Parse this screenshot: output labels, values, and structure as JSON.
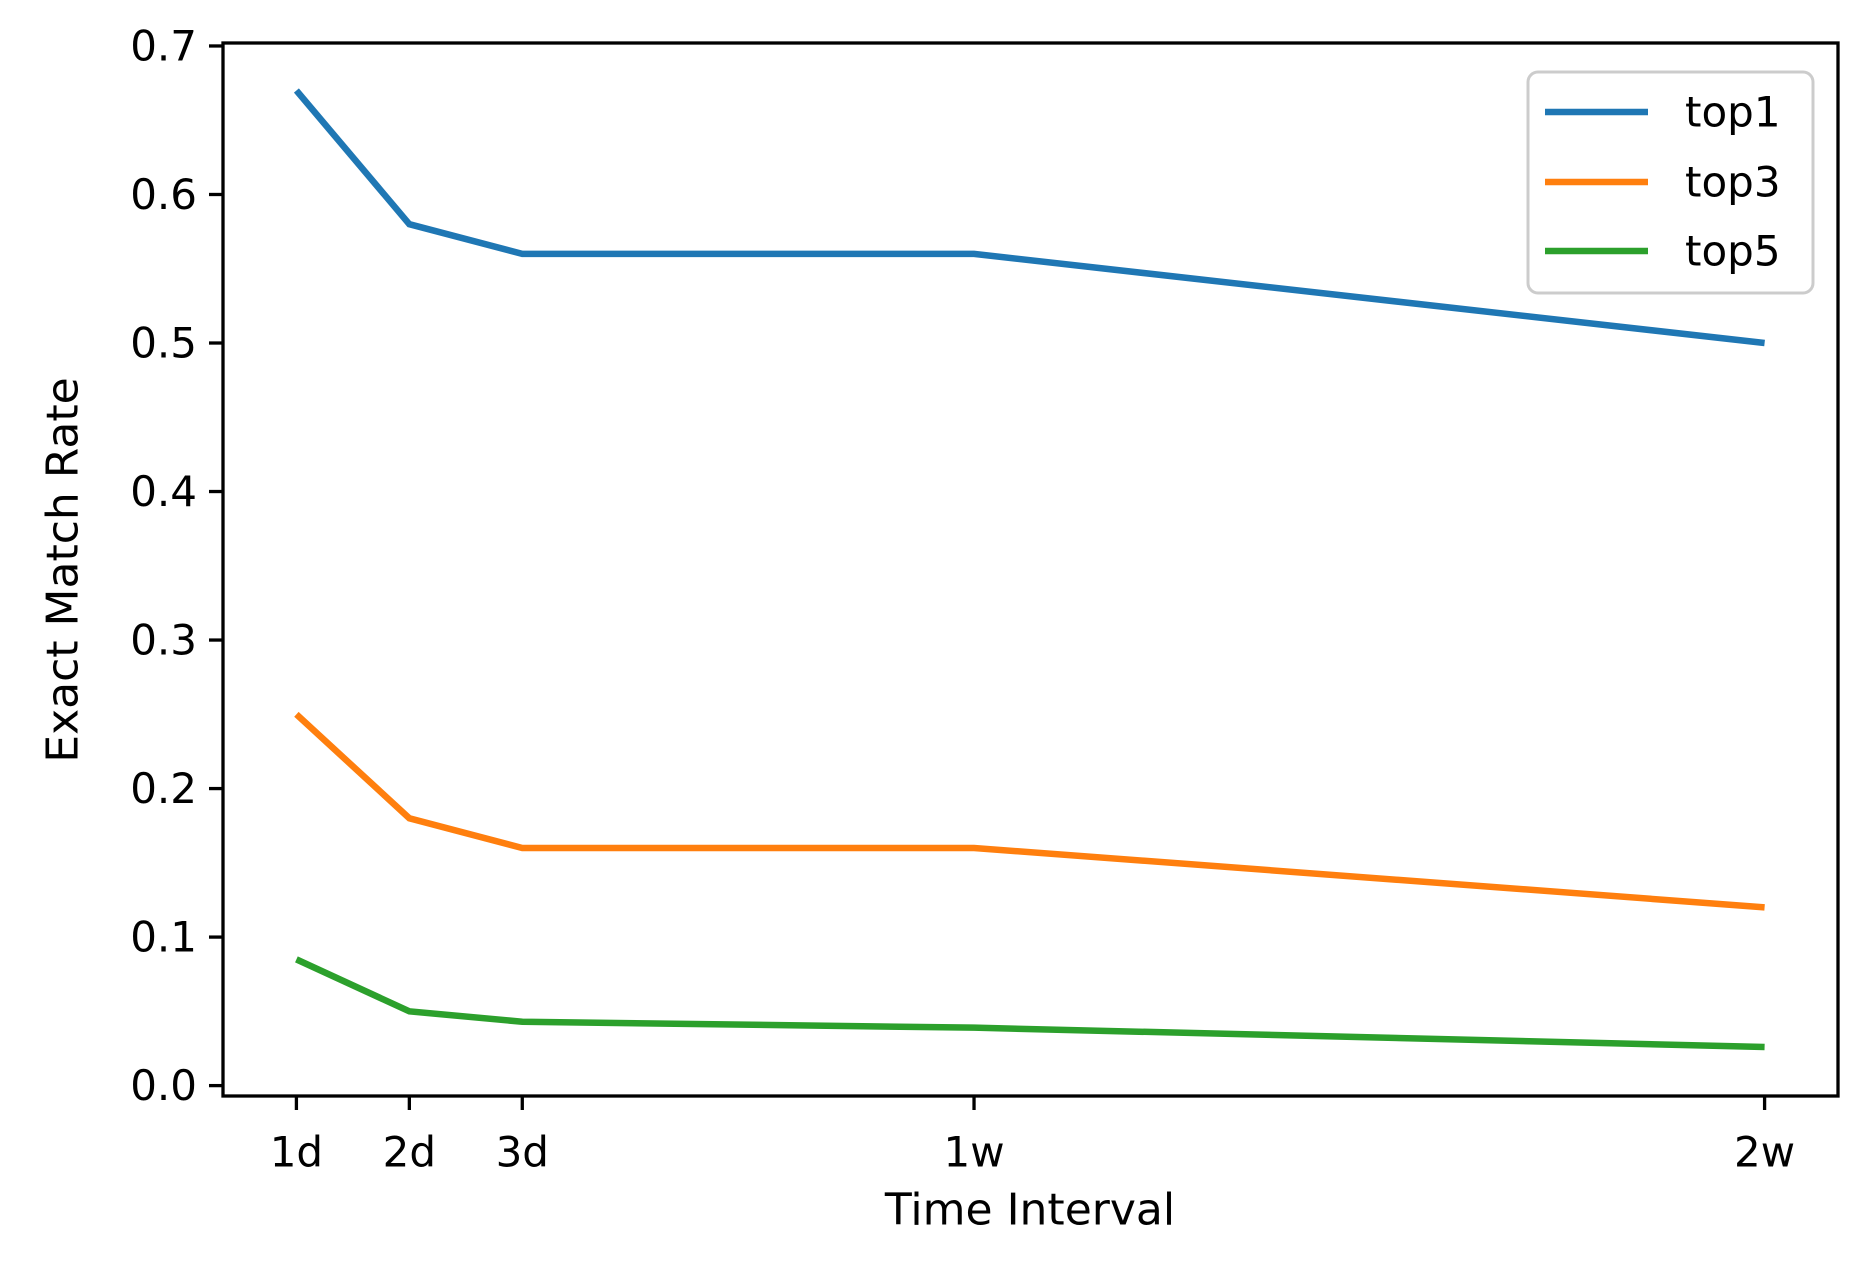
{
  "chart_data": {
    "type": "line",
    "title": "",
    "xlabel": "Time Interval",
    "ylabel": "Exact Match Rate",
    "categories": [
      "1d",
      "2d",
      "3d",
      "1w",
      "2w"
    ],
    "x_days": [
      1,
      2,
      3,
      7,
      14
    ],
    "series": [
      {
        "name": "top1",
        "color": "#1f77b4",
        "values": [
          0.67,
          0.58,
          0.56,
          0.56,
          0.5
        ]
      },
      {
        "name": "top3",
        "color": "#ff7f0e",
        "values": [
          0.25,
          0.18,
          0.16,
          0.16,
          0.12
        ]
      },
      {
        "name": "top5",
        "color": "#2ca02c",
        "values": [
          0.085,
          0.05,
          0.043,
          0.039,
          0.026
        ]
      }
    ],
    "yticks": [
      "0.0",
      "0.1",
      "0.2",
      "0.3",
      "0.4",
      "0.5",
      "0.6",
      "0.7"
    ],
    "ylim": [
      -0.007,
      0.702
    ],
    "xlim_days": [
      0.35,
      14.65
    ],
    "grid": false,
    "legend_position": "upper right",
    "frame_color": "#000000",
    "legend_border_color": "#cccccc"
  }
}
